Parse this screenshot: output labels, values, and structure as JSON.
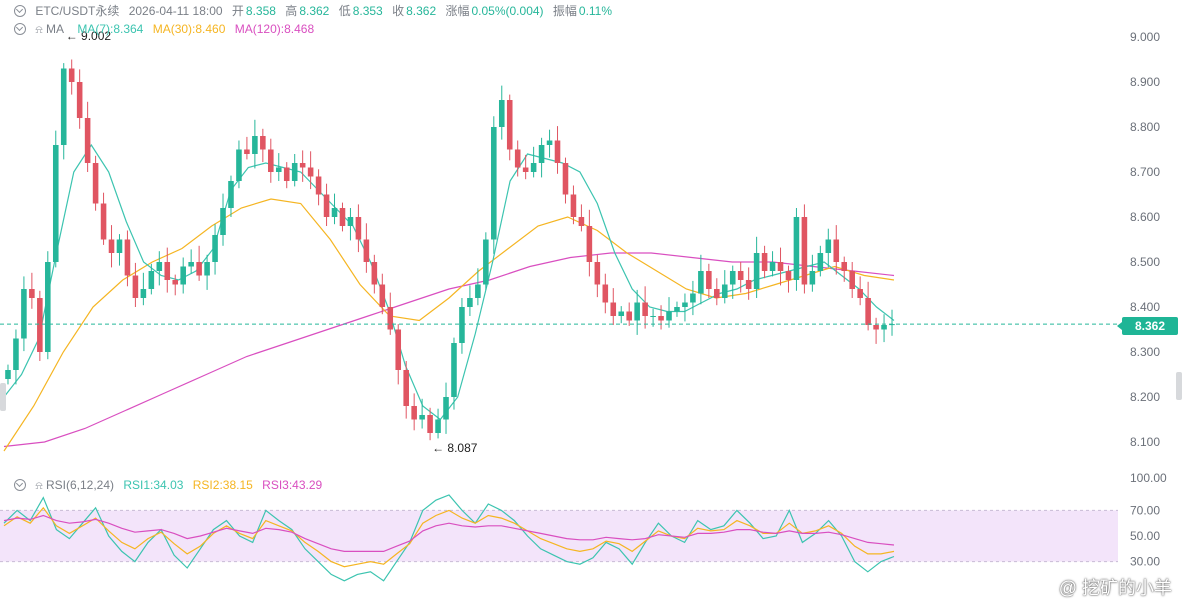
{
  "header": {
    "symbol": "ETC/USDT永续",
    "time": "2026-04-11 18:00",
    "open_label": "开",
    "open": "8.358",
    "high_label": "高",
    "high": "8.362",
    "low_label": "低",
    "low": "8.353",
    "close_label": "收",
    "close": "8.362",
    "change_label": "涨幅",
    "change": "0.05%(0.004)",
    "amp_label": "振幅",
    "amp": "0.11%"
  },
  "ma_legend": {
    "name": "MA",
    "ma7": "MA(7):8.364",
    "ma30": "MA(30):8.460",
    "ma120": "MA(120):8.468"
  },
  "rsi_legend": {
    "name": "RSI(6,12,24)",
    "rsi1": "RSI1:34.03",
    "rsi2": "RSI2:38.15",
    "rsi3": "RSI3:43.29"
  },
  "price_tag": "8.362",
  "watermark": "@ 挖矿的小羊",
  "colors": {
    "up": "#26b69a",
    "down": "#e05562",
    "ma7": "#3cc4b0",
    "ma30": "#f5b522",
    "ma120": "#d94fc0",
    "rsi1": "#3cc4b0",
    "rsi2": "#f5b522",
    "rsi3": "#d94fc0",
    "rsi_band": "#f3e4fa"
  },
  "chart_data": [
    {
      "type": "candlestick",
      "title": "ETC/USDT永续",
      "price_axis": {
        "ticks": [
          "9.000",
          "8.900",
          "8.800",
          "8.700",
          "8.600",
          "8.500",
          "8.400",
          "8.300",
          "8.200",
          "8.100"
        ],
        "ylim": [
          8.06,
          9.06
        ]
      },
      "annotations": {
        "high": "9.002",
        "low": "8.087",
        "last_price": "8.362"
      },
      "close_series": [
        8.26,
        8.33,
        8.44,
        8.42,
        8.3,
        8.5,
        8.76,
        8.93,
        8.9,
        8.82,
        8.72,
        8.63,
        8.55,
        8.52,
        8.55,
        8.47,
        8.42,
        8.44,
        8.48,
        8.5,
        8.46,
        8.45,
        8.49,
        8.5,
        8.47,
        8.5,
        8.56,
        8.62,
        8.68,
        8.75,
        8.74,
        8.78,
        8.75,
        8.7,
        8.71,
        8.68,
        8.72,
        8.71,
        8.69,
        8.65,
        8.6,
        8.62,
        8.58,
        8.6,
        8.55,
        8.5,
        8.45,
        8.4,
        8.35,
        8.26,
        8.18,
        8.15,
        8.16,
        8.12,
        8.15,
        8.2,
        8.32,
        8.4,
        8.42,
        8.45,
        8.55,
        8.8,
        8.86,
        8.75,
        8.71,
        8.7,
        8.72,
        8.76,
        8.77,
        8.72,
        8.65,
        8.6,
        8.58,
        8.5,
        8.45,
        8.41,
        8.38,
        8.39,
        8.37,
        8.41,
        8.38,
        8.38,
        8.37,
        8.39,
        8.4,
        8.41,
        8.43,
        8.48,
        8.44,
        8.42,
        8.45,
        8.48,
        8.46,
        8.44,
        8.52,
        8.48,
        8.5,
        8.48,
        8.46,
        8.6,
        8.45,
        8.48,
        8.52,
        8.55,
        8.5,
        8.48,
        8.44,
        8.42,
        8.36,
        8.35,
        8.36,
        8.362
      ],
      "ma7": [
        8.2,
        8.25,
        8.33,
        8.52,
        8.7,
        8.76,
        8.7,
        8.59,
        8.5,
        8.47,
        8.46,
        8.48,
        8.53,
        8.66,
        8.71,
        8.72,
        8.71,
        8.7,
        8.66,
        8.62,
        8.58,
        8.5,
        8.4,
        8.27,
        8.18,
        8.15,
        8.2,
        8.34,
        8.5,
        8.68,
        8.74,
        8.73,
        8.72,
        8.7,
        8.63,
        8.52,
        8.44,
        8.4,
        8.39,
        8.39,
        8.41,
        8.43,
        8.44,
        8.46,
        8.47,
        8.48,
        8.49,
        8.5,
        8.47,
        8.44,
        8.4,
        8.37
      ],
      "ma30": [
        8.08,
        8.18,
        8.3,
        8.4,
        8.46,
        8.5,
        8.53,
        8.58,
        8.62,
        8.64,
        8.63,
        8.55,
        8.45,
        8.38,
        8.37,
        8.42,
        8.48,
        8.53,
        8.58,
        8.6,
        8.57,
        8.52,
        8.48,
        8.44,
        8.42,
        8.43,
        8.45,
        8.47,
        8.49,
        8.47,
        8.46
      ],
      "ma120": [
        8.09,
        8.1,
        8.13,
        8.17,
        8.21,
        8.25,
        8.29,
        8.32,
        8.35,
        8.38,
        8.41,
        8.44,
        8.46,
        8.49,
        8.51,
        8.52,
        8.52,
        8.51,
        8.5,
        8.5,
        8.49,
        8.48,
        8.47
      ]
    },
    {
      "type": "line",
      "title": "RSI(6,12,24)",
      "y_axis": {
        "ticks": [
          "100.00",
          "70.00",
          "50.00",
          "30.00"
        ],
        "ylim": [
          0,
          100
        ]
      },
      "band": [
        30,
        70
      ],
      "series": [
        {
          "name": "RSI1",
          "values": [
            60,
            70,
            62,
            80,
            55,
            48,
            60,
            72,
            50,
            38,
            30,
            45,
            55,
            35,
            25,
            40,
            55,
            62,
            50,
            45,
            70,
            62,
            55,
            40,
            30,
            20,
            15,
            20,
            22,
            15,
            30,
            45,
            70,
            78,
            82,
            70,
            60,
            75,
            70,
            62,
            50,
            40,
            35,
            30,
            28,
            33,
            45,
            40,
            28,
            45,
            60,
            50,
            45,
            62,
            55,
            58,
            70,
            60,
            48,
            50,
            70,
            45,
            52,
            62,
            50,
            30,
            22,
            30,
            34
          ]
        },
        {
          "name": "RSI2",
          "values": [
            58,
            65,
            60,
            72,
            58,
            52,
            58,
            64,
            54,
            45,
            40,
            48,
            53,
            44,
            36,
            42,
            52,
            58,
            52,
            48,
            62,
            58,
            54,
            45,
            38,
            30,
            26,
            28,
            30,
            28,
            36,
            44,
            60,
            66,
            70,
            64,
            60,
            66,
            64,
            60,
            54,
            48,
            44,
            40,
            38,
            40,
            46,
            44,
            38,
            46,
            54,
            50,
            48,
            56,
            54,
            55,
            62,
            58,
            52,
            52,
            60,
            52,
            54,
            58,
            52,
            42,
            36,
            36,
            38
          ]
        },
        {
          "name": "RSI3",
          "values": [
            62,
            64,
            63,
            66,
            62,
            60,
            61,
            63,
            60,
            56,
            53,
            54,
            55,
            52,
            48,
            50,
            53,
            56,
            54,
            52,
            56,
            55,
            53,
            48,
            44,
            40,
            38,
            38,
            38,
            38,
            42,
            46,
            54,
            58,
            60,
            58,
            57,
            58,
            58,
            56,
            54,
            52,
            50,
            48,
            47,
            47,
            49,
            48,
            47,
            48,
            51,
            50,
            49,
            52,
            52,
            53,
            55,
            55,
            53,
            52,
            54,
            52,
            52,
            53,
            51,
            48,
            45,
            44,
            43
          ]
        }
      ]
    }
  ]
}
